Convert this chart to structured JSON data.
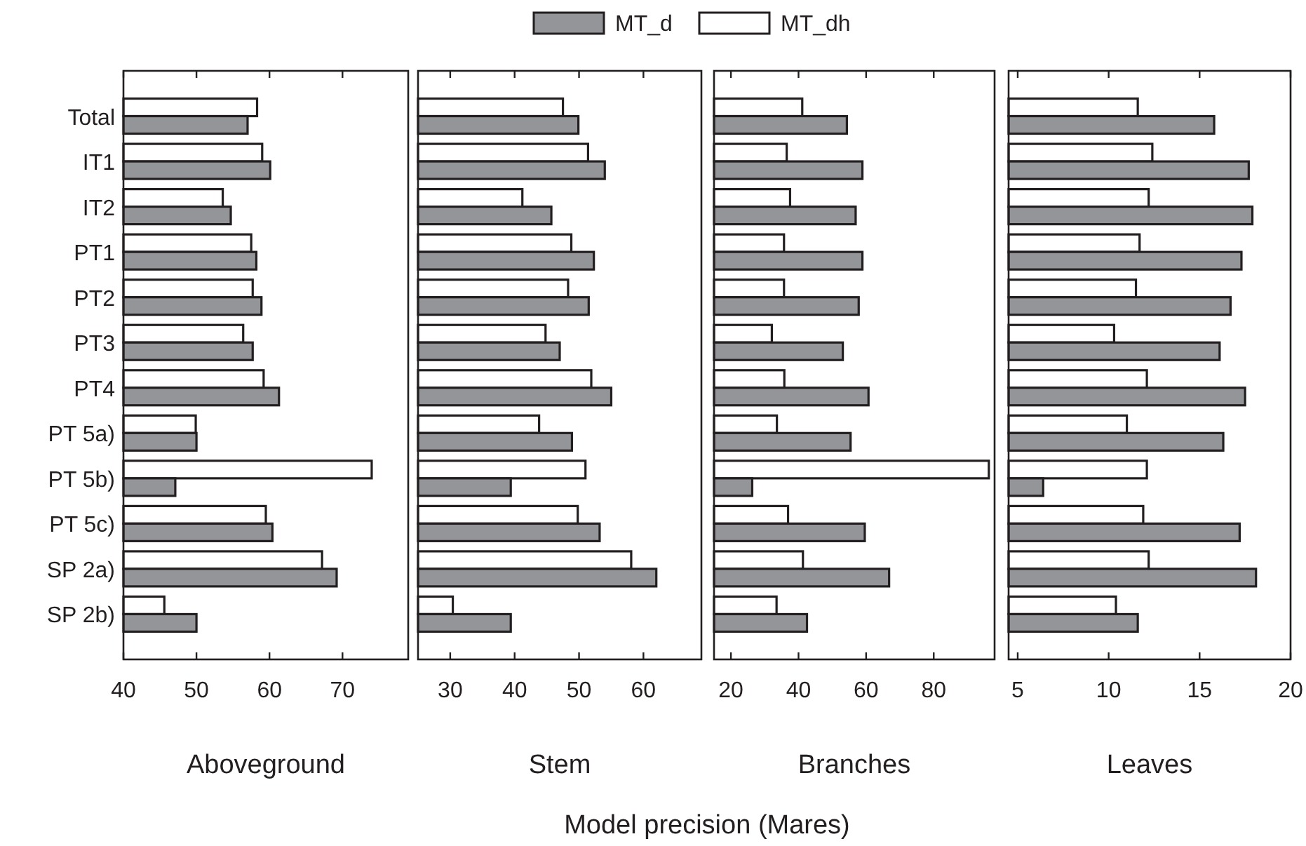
{
  "chart_data": [
    {
      "type": "bar",
      "orientation": "horizontal",
      "xlabel": "Aboveground",
      "categories": [
        "Total",
        "IT1",
        "IT2",
        "PT1",
        "PT2",
        "PT3",
        "PT4",
        "PT 5a)",
        "PT 5b)",
        "PT 5c)",
        "SP 2a)",
        "SP 2b)"
      ],
      "xlim": [
        40,
        79
      ],
      "xticks": [
        40,
        50,
        60,
        70
      ],
      "legend": "top",
      "grid": false,
      "annotations": [
        "Model precision (Mares)"
      ],
      "series": [
        {
          "name": "MT_dh",
          "color": "#ffffff",
          "values": [
            58.3,
            59.0,
            53.6,
            57.5,
            57.7,
            56.4,
            59.2,
            49.9,
            74.0,
            59.5,
            67.2,
            45.6
          ]
        },
        {
          "name": "MT_d",
          "color": "#939598",
          "values": [
            57.0,
            60.1,
            54.7,
            58.2,
            58.9,
            57.7,
            61.3,
            50.0,
            47.1,
            60.4,
            69.2,
            50.0
          ]
        }
      ]
    },
    {
      "type": "bar",
      "orientation": "horizontal",
      "xlabel": "Stem",
      "categories": [
        null,
        null,
        null,
        null,
        null,
        null,
        null,
        null,
        null,
        null,
        null,
        null
      ],
      "xlim": [
        25,
        69
      ],
      "xticks": [
        30,
        40,
        50,
        60
      ],
      "tick_labels": "x",
      "grid": false,
      "series": [
        {
          "color": "#ffffff",
          "values": [
            47.5,
            51.4,
            41.2,
            48.8,
            48.3,
            44.8,
            51.9,
            43.8,
            51.0,
            49.8,
            58.1,
            30.4
          ]
        },
        {
          "color": "#939598",
          "values": [
            49.9,
            54.0,
            45.7,
            52.3,
            51.5,
            47.0,
            55.0,
            48.9,
            39.4,
            53.2,
            62.0,
            39.4
          ]
        }
      ]
    },
    {
      "type": "bar",
      "orientation": "horizontal",
      "xlabel": "Branches",
      "categories": [
        null,
        null,
        null,
        null,
        null,
        null,
        null,
        null,
        null,
        null,
        null,
        null
      ],
      "xlim": [
        15,
        98
      ],
      "xticks": [
        20,
        40,
        60,
        80
      ],
      "tick_labels": "x",
      "grid": false,
      "series": [
        {
          "color": "#ffffff",
          "values": [
            41.1,
            36.5,
            37.5,
            35.7,
            35.7,
            32.1,
            35.8,
            33.6,
            96.3,
            36.9,
            41.3,
            33.5
          ]
        },
        {
          "color": "#939598",
          "values": [
            54.3,
            58.9,
            56.9,
            58.9,
            57.8,
            53.1,
            60.7,
            55.4,
            26.3,
            59.6,
            66.8,
            42.5
          ]
        }
      ]
    },
    {
      "type": "bar",
      "orientation": "horizontal",
      "xlabel": "Leaves",
      "categories": [
        null,
        null,
        null,
        null,
        null,
        null,
        null,
        null,
        null,
        null,
        null,
        null
      ],
      "xlim": [
        4.5,
        20
      ],
      "xticks": [
        5,
        10,
        15,
        20
      ],
      "tick_labels": "x",
      "grid": false,
      "series": [
        {
          "color": "#ffffff",
          "values": [
            11.6,
            12.4,
            12.2,
            11.7,
            11.5,
            10.3,
            12.1,
            11.0,
            12.1,
            11.9,
            12.2,
            10.4
          ]
        },
        {
          "color": "#939598",
          "values": [
            15.8,
            17.7,
            17.9,
            17.3,
            16.7,
            16.1,
            17.5,
            16.3,
            6.4,
            17.2,
            18.1,
            11.6
          ]
        }
      ]
    }
  ]
}
